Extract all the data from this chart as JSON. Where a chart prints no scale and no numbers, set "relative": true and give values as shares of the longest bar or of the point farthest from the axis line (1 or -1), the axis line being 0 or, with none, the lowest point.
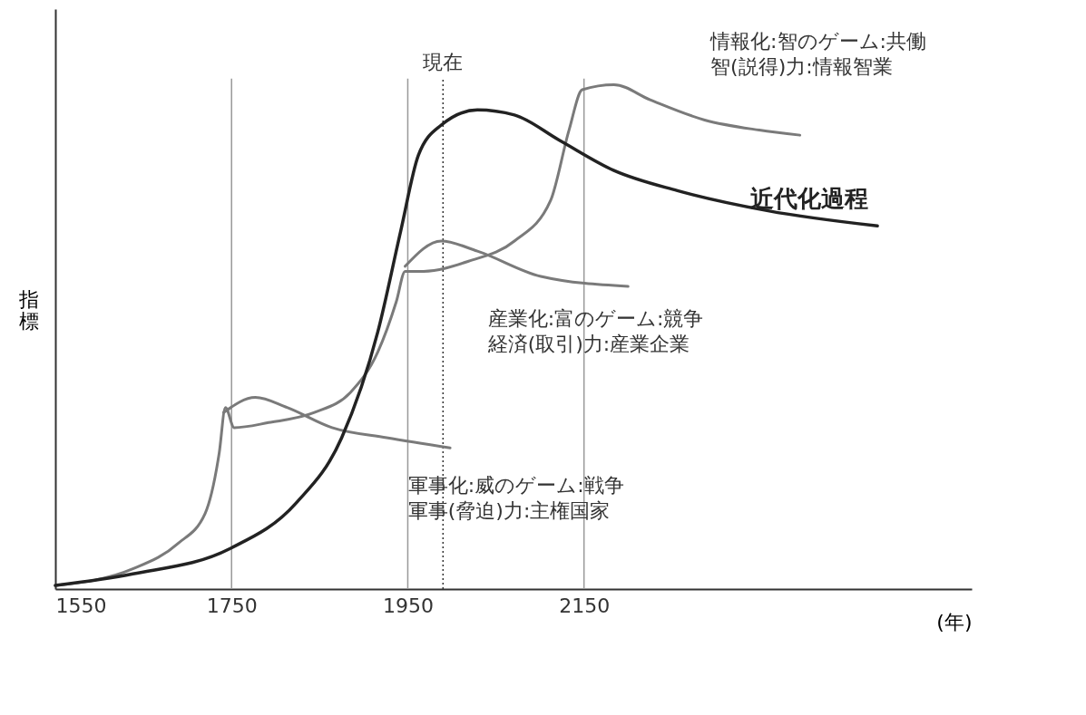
{
  "chart_data": {
    "type": "line",
    "relative": true,
    "xlabel": "(年)",
    "ylabel": "指標",
    "xlim": [
      1550,
      2590
    ],
    "xticks": [
      1550,
      1750,
      1950,
      2150
    ],
    "tick_labels": "x",
    "grid": false,
    "marker": "none",
    "line_style": "solid",
    "series": [
      {
        "color": "#7a7a7a",
        "x": [
          1550,
          1638,
          1689,
          1720,
          1736,
          1743,
          1753,
          1792,
          1844,
          1885,
          1916,
          1937,
          1947,
          1968,
          2019,
          2071,
          2112,
          2133,
          2148,
          2184,
          2225,
          2287,
          2349,
          2395
        ],
        "values": [
          0.007,
          0.04,
          0.09,
          0.15,
          0.27,
          0.36,
          0.32,
          0.33,
          0.35,
          0.39,
          0.47,
          0.57,
          0.63,
          0.63,
          0.65,
          0.69,
          0.77,
          0.91,
          0.99,
          1.0,
          0.97,
          0.93,
          0.91,
          0.9
        ]
      },
      {
        "color": "#7a7a7a",
        "x": [
          1741,
          1777,
          1813,
          1864,
          1926,
          1998
        ],
        "values": [
          0.35,
          0.38,
          0.36,
          0.32,
          0.3,
          0.28
        ]
      },
      {
        "color": "#7a7a7a",
        "x": [
          1947,
          1988,
          2029,
          2101,
          2200
        ],
        "values": [
          0.64,
          0.69,
          0.67,
          0.62,
          0.6
        ]
      },
      {
        "name": "近代化過程",
        "color": "#222222",
        "x": [
          1550,
          1638,
          1748,
          1823,
          1875,
          1916,
          1942,
          1962,
          1988,
          2029,
          2071,
          2122,
          2184,
          2256,
          2359,
          2483
        ],
        "values": [
          0.007,
          0.03,
          0.08,
          0.17,
          0.3,
          0.51,
          0.71,
          0.86,
          0.92,
          0.95,
          0.94,
          0.89,
          0.83,
          0.79,
          0.75,
          0.72
        ]
      }
    ],
    "ref_lines": [
      {
        "axis": "x",
        "value": 1750,
        "label": null,
        "color": "#999999",
        "line_style": "solid"
      },
      {
        "axis": "x",
        "value": 1950,
        "label": null,
        "color": "#999999",
        "line_style": "solid"
      },
      {
        "axis": "x",
        "value": 2150,
        "label": null,
        "color": "#999999",
        "line_style": "solid"
      },
      {
        "axis": "x",
        "value": 1990,
        "label": "現在",
        "color": "#333333",
        "line_style": "dotted"
      }
    ],
    "annotations": [
      "軍事化:威のゲーム:戦争",
      "軍事(脅迫)力:主権国家",
      "産業化:富のゲーム:競争",
      "経済(取引)力:産業企業",
      "情報化:智のゲーム:共働",
      "智(説得)力:情報智業"
    ]
  }
}
